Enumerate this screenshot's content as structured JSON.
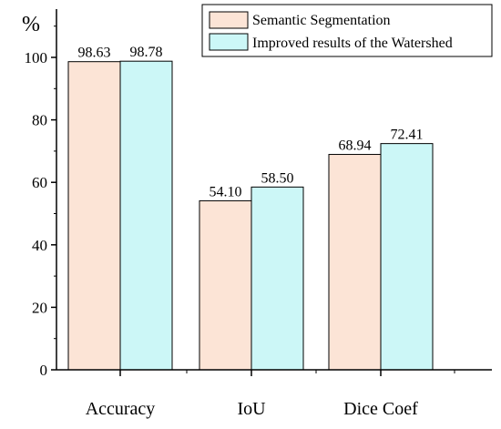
{
  "chart_data": {
    "type": "bar",
    "categories": [
      "Accuracy",
      "IoU",
      "Dice Coef"
    ],
    "series": [
      {
        "name": "Semantic Segmentation",
        "values": [
          98.63,
          54.1,
          68.94
        ],
        "value_labels": [
          "98.63",
          "54.10",
          "68.94"
        ],
        "color": "#FCE4D6"
      },
      {
        "name": "Improved results of the Watershed",
        "values": [
          98.78,
          58.5,
          72.41
        ],
        "value_labels": [
          "98.78",
          "58.50",
          "72.41"
        ],
        "color": "#CCF7F7"
      }
    ],
    "ylabel": "%",
    "ylim": [
      0,
      116
    ],
    "yticks": [
      0,
      20,
      40,
      60,
      80,
      100
    ],
    "legend_position": "top-right",
    "grid": false
  }
}
